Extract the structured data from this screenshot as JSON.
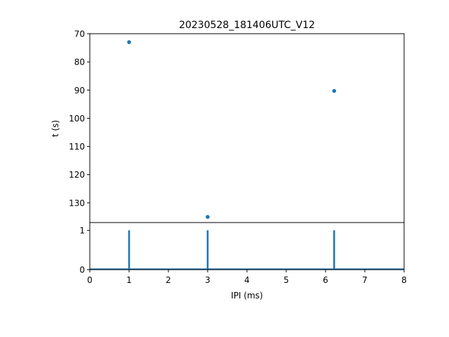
{
  "chart_data": [
    {
      "type": "scatter",
      "title": "20230528_181406UTC_V12",
      "ylabel": "t (s)",
      "xlim": [
        0,
        8
      ],
      "ylim": [
        137,
        70
      ],
      "y_inverted": true,
      "yticks": [
        70,
        80,
        90,
        100,
        110,
        120,
        130
      ],
      "grid": false,
      "color": "#1f77b4",
      "points": [
        {
          "x": 1.0,
          "y": 73.0
        },
        {
          "x": 3.0,
          "y": 135.0
        },
        {
          "x": 6.22,
          "y": 90.3
        }
      ]
    },
    {
      "type": "line",
      "xlabel": "IPI (ms)",
      "xlim": [
        0,
        8
      ],
      "ylim": [
        0,
        1.2
      ],
      "xticks": [
        0,
        1,
        2,
        3,
        4,
        5,
        6,
        7,
        8
      ],
      "yticks": [
        0,
        1
      ],
      "grid": false,
      "color": "#1f77b4",
      "spikes": [
        {
          "x": 1.0,
          "y": 1
        },
        {
          "x": 3.0,
          "y": 1
        },
        {
          "x": 6.22,
          "y": 1
        }
      ]
    }
  ]
}
